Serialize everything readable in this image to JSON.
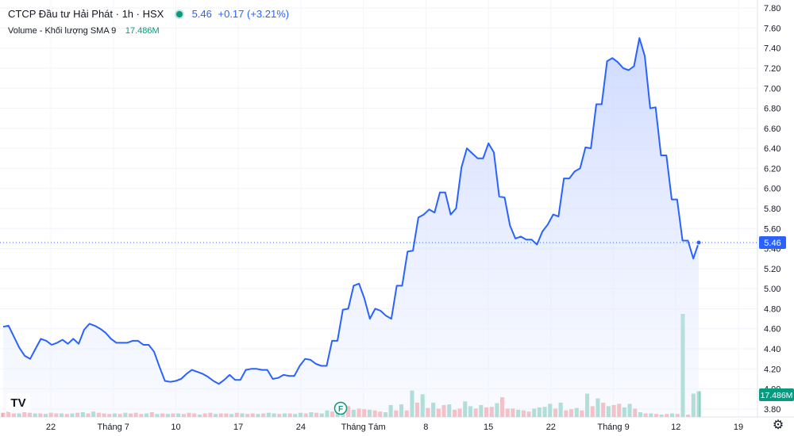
{
  "legend": {
    "title": "CTCP Đầu tư Hải Phát · 1h · HSX",
    "price": "5.46",
    "change": "+0.17 (+3.21%)",
    "volume_label": "Volume - Khối lượng SMA 9",
    "volume_value": "17.486M"
  },
  "flag_label": "F",
  "tv_logo": "TV",
  "colors": {
    "line": "#2962ff",
    "fill_top": "#c9d6ff",
    "vol_up": "#8fd3c2",
    "vol_down": "#f6a6a8",
    "last_price_bg": "#2962ff",
    "volume_badge_bg": "#089981",
    "flag": "#089981"
  },
  "chart_data": {
    "type": "line",
    "price_axis": {
      "ticks": [
        "7.80",
        "7.60",
        "7.40",
        "7.20",
        "7.00",
        "6.80",
        "6.60",
        "6.40",
        "6.20",
        "6.00",
        "5.80",
        "5.60",
        "5.40",
        "5.20",
        "5.00",
        "4.80",
        "4.60",
        "4.40",
        "4.20",
        "4.00",
        "3.80"
      ],
      "range": [
        3.72,
        7.88
      ],
      "last_price_label": "5.46",
      "volume_label": "17.486M"
    },
    "time_axis_labels": [
      "22",
      "Tháng 7",
      "10",
      "17",
      "24",
      "Tháng Tám",
      "8",
      "15",
      "22",
      "Tháng 9",
      "12",
      "19"
    ],
    "price_series": [
      4.62,
      4.63,
      4.52,
      4.41,
      4.33,
      4.3,
      4.4,
      4.5,
      4.48,
      4.44,
      4.46,
      4.49,
      4.45,
      4.5,
      4.45,
      4.59,
      4.65,
      4.63,
      4.6,
      4.56,
      4.5,
      4.46,
      4.46,
      4.46,
      4.48,
      4.48,
      4.44,
      4.44,
      4.37,
      4.22,
      4.08,
      4.07,
      4.08,
      4.1,
      4.15,
      4.19,
      4.17,
      4.15,
      4.12,
      4.08,
      4.05,
      4.09,
      4.14,
      4.09,
      4.09,
      4.19,
      4.2,
      4.2,
      4.19,
      4.19,
      4.1,
      4.11,
      4.14,
      4.13,
      4.13,
      4.23,
      4.3,
      4.29,
      4.25,
      4.23,
      4.23,
      4.48,
      4.48,
      4.79,
      4.8,
      5.03,
      5.05,
      4.9,
      4.7,
      4.8,
      4.78,
      4.73,
      4.7,
      5.03,
      5.03,
      5.37,
      5.38,
      5.71,
      5.74,
      5.79,
      5.76,
      5.96,
      5.96,
      5.74,
      5.8,
      6.21,
      6.4,
      6.35,
      6.3,
      6.3,
      6.45,
      6.36,
      5.92,
      5.91,
      5.63,
      5.5,
      5.52,
      5.49,
      5.49,
      5.44,
      5.57,
      5.64,
      5.74,
      5.72,
      6.1,
      6.1,
      6.17,
      6.2,
      6.41,
      6.4,
      6.84,
      6.84,
      7.27,
      7.3,
      7.26,
      7.2,
      7.18,
      7.22,
      7.5,
      7.32,
      6.8,
      6.81,
      6.33,
      6.33,
      5.89,
      5.89,
      5.48,
      5.48,
      5.3,
      5.46
    ],
    "volume_series": [
      {
        "v": 0.35,
        "up": false
      },
      {
        "v": 0.45,
        "up": false
      },
      {
        "v": 0.3,
        "up": false
      },
      {
        "v": 0.3,
        "up": true
      },
      {
        "v": 0.4,
        "up": false
      },
      {
        "v": 0.35,
        "up": false
      },
      {
        "v": 0.3,
        "up": true
      },
      {
        "v": 0.3,
        "up": false
      },
      {
        "v": 0.25,
        "up": true
      },
      {
        "v": 0.35,
        "up": false
      },
      {
        "v": 0.3,
        "up": false
      },
      {
        "v": 0.3,
        "up": true
      },
      {
        "v": 0.25,
        "up": false
      },
      {
        "v": 0.3,
        "up": true
      },
      {
        "v": 0.35,
        "up": false
      },
      {
        "v": 0.4,
        "up": true
      },
      {
        "v": 0.3,
        "up": false
      },
      {
        "v": 0.45,
        "up": true
      },
      {
        "v": 0.35,
        "up": false
      },
      {
        "v": 0.3,
        "up": false
      },
      {
        "v": 0.25,
        "up": false
      },
      {
        "v": 0.3,
        "up": true
      },
      {
        "v": 0.25,
        "up": false
      },
      {
        "v": 0.35,
        "up": true
      },
      {
        "v": 0.3,
        "up": false
      },
      {
        "v": 0.35,
        "up": false
      },
      {
        "v": 0.25,
        "up": false
      },
      {
        "v": 0.3,
        "up": true
      },
      {
        "v": 0.4,
        "up": false
      },
      {
        "v": 0.25,
        "up": true
      },
      {
        "v": 0.3,
        "up": false
      },
      {
        "v": 0.25,
        "up": true
      },
      {
        "v": 0.3,
        "up": false
      },
      {
        "v": 0.3,
        "up": true
      },
      {
        "v": 0.25,
        "up": false
      },
      {
        "v": 0.35,
        "up": false
      },
      {
        "v": 0.3,
        "up": false
      },
      {
        "v": 0.2,
        "up": true
      },
      {
        "v": 0.3,
        "up": false
      },
      {
        "v": 0.35,
        "up": false
      },
      {
        "v": 0.25,
        "up": true
      },
      {
        "v": 0.3,
        "up": false
      },
      {
        "v": 0.3,
        "up": false
      },
      {
        "v": 0.25,
        "up": true
      },
      {
        "v": 0.35,
        "up": false
      },
      {
        "v": 0.3,
        "up": true
      },
      {
        "v": 0.25,
        "up": false
      },
      {
        "v": 0.3,
        "up": false
      },
      {
        "v": 0.25,
        "up": true
      },
      {
        "v": 0.3,
        "up": false
      },
      {
        "v": 0.35,
        "up": true
      },
      {
        "v": 0.3,
        "up": true
      },
      {
        "v": 0.25,
        "up": false
      },
      {
        "v": 0.3,
        "up": true
      },
      {
        "v": 0.3,
        "up": false
      },
      {
        "v": 0.25,
        "up": true
      },
      {
        "v": 0.35,
        "up": true
      },
      {
        "v": 0.3,
        "up": false
      },
      {
        "v": 0.4,
        "up": true
      },
      {
        "v": 0.35,
        "up": false
      },
      {
        "v": 0.3,
        "up": true
      },
      {
        "v": 0.55,
        "up": true
      },
      {
        "v": 0.45,
        "up": false
      },
      {
        "v": 0.7,
        "up": true
      },
      {
        "v": 0.5,
        "up": true
      },
      {
        "v": 0.9,
        "up": false
      },
      {
        "v": 0.6,
        "up": true
      },
      {
        "v": 0.7,
        "up": false
      },
      {
        "v": 0.65,
        "up": false
      },
      {
        "v": 0.6,
        "up": true
      },
      {
        "v": 0.55,
        "up": false
      },
      {
        "v": 0.45,
        "up": false
      },
      {
        "v": 0.4,
        "up": true
      },
      {
        "v": 1.0,
        "up": true
      },
      {
        "v": 0.55,
        "up": false
      },
      {
        "v": 1.05,
        "up": true
      },
      {
        "v": 0.55,
        "up": false
      },
      {
        "v": 2.2,
        "up": true
      },
      {
        "v": 1.2,
        "up": false
      },
      {
        "v": 1.9,
        "up": true
      },
      {
        "v": 0.75,
        "up": false
      },
      {
        "v": 1.2,
        "up": true
      },
      {
        "v": 0.7,
        "up": false
      },
      {
        "v": 1.0,
        "up": false
      },
      {
        "v": 1.05,
        "up": true
      },
      {
        "v": 0.6,
        "up": false
      },
      {
        "v": 0.7,
        "up": false
      },
      {
        "v": 1.3,
        "up": true
      },
      {
        "v": 0.9,
        "up": true
      },
      {
        "v": 0.7,
        "up": false
      },
      {
        "v": 1.0,
        "up": true
      },
      {
        "v": 0.8,
        "up": false
      },
      {
        "v": 0.85,
        "up": false
      },
      {
        "v": 1.15,
        "up": true
      },
      {
        "v": 1.65,
        "up": false
      },
      {
        "v": 0.7,
        "up": false
      },
      {
        "v": 0.7,
        "up": false
      },
      {
        "v": 0.6,
        "up": true
      },
      {
        "v": 0.55,
        "up": false
      },
      {
        "v": 0.45,
        "up": false
      },
      {
        "v": 0.7,
        "up": true
      },
      {
        "v": 0.8,
        "up": true
      },
      {
        "v": 0.85,
        "up": true
      },
      {
        "v": 1.1,
        "up": true
      },
      {
        "v": 0.7,
        "up": false
      },
      {
        "v": 1.2,
        "up": true
      },
      {
        "v": 0.55,
        "up": false
      },
      {
        "v": 0.65,
        "up": false
      },
      {
        "v": 0.75,
        "up": true
      },
      {
        "v": 0.55,
        "up": false
      },
      {
        "v": 1.95,
        "up": true
      },
      {
        "v": 0.9,
        "up": false
      },
      {
        "v": 1.55,
        "up": true
      },
      {
        "v": 1.2,
        "up": false
      },
      {
        "v": 0.9,
        "up": true
      },
      {
        "v": 1.0,
        "up": false
      },
      {
        "v": 1.1,
        "up": false
      },
      {
        "v": 0.8,
        "up": true
      },
      {
        "v": 1.1,
        "up": true
      },
      {
        "v": 0.7,
        "up": false
      },
      {
        "v": 0.4,
        "up": true
      },
      {
        "v": 0.3,
        "up": false
      },
      {
        "v": 0.3,
        "up": true
      },
      {
        "v": 0.25,
        "up": false
      },
      {
        "v": 0.2,
        "up": true
      },
      {
        "v": 0.25,
        "up": false
      },
      {
        "v": 0.3,
        "up": true
      },
      {
        "v": 0.25,
        "up": false
      },
      {
        "v": 8.6,
        "up": true
      },
      {
        "v": 0.2,
        "up": false
      },
      {
        "v": 1.95,
        "up": true
      },
      {
        "v": 2.15,
        "up": true
      }
    ]
  }
}
